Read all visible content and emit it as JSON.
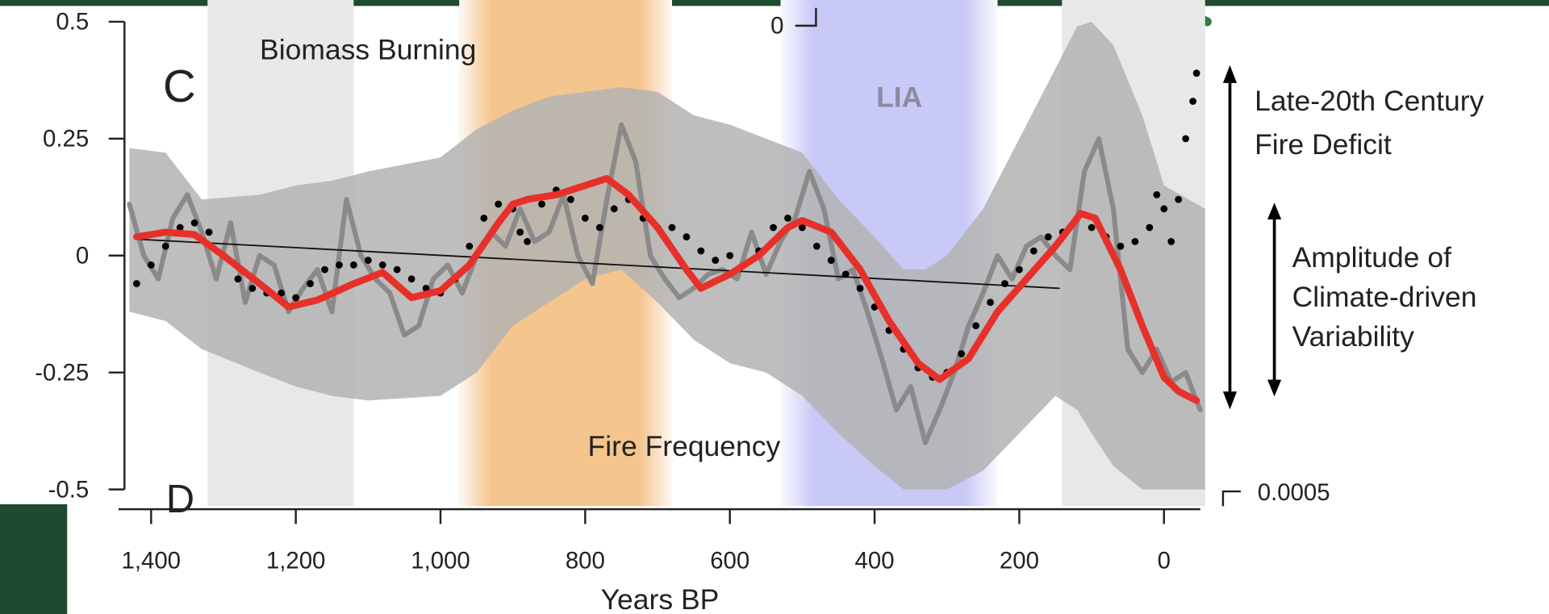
{
  "chart_data": {
    "type": "line",
    "xlabel": "Years BP",
    "panel_label": "C",
    "next_panel_label": "D",
    "xlim": [
      1445,
      -57
    ],
    "ylim": [
      -0.5,
      0.5
    ],
    "xticks": [
      {
        "value": 1400,
        "label": "1,400"
      },
      {
        "value": 1200,
        "label": "1,200"
      },
      {
        "value": 1000,
        "label": "1,000"
      },
      800,
      600,
      400,
      200,
      0
    ],
    "yticks": [
      0.5,
      0.25,
      0,
      -0.25,
      -0.5
    ],
    "annotations": {
      "biomass": "Biomass Burning",
      "lia": "LIA",
      "fire_frequency": "Fire Frequency",
      "deficit": [
        "Late-20th Century",
        "Fire Deficit"
      ],
      "amplitude": [
        "Amplitude of",
        "Climate-driven",
        "Variability"
      ],
      "upper_fragment": "0",
      "lower_fragment": "0.0005"
    },
    "spans": [
      {
        "start": 1322,
        "end": 1120,
        "color": "#e8e8e8"
      },
      {
        "start": 974,
        "end": 680,
        "color": "#f5c58e"
      },
      {
        "start": 530,
        "end": 230,
        "color": "#c9c9f7"
      },
      {
        "start": 141,
        "end": -57,
        "color": "#e8e8e8"
      }
    ],
    "band": {
      "color": "#b3b3b3",
      "x": [
        1430,
        1380,
        1330,
        1250,
        1200,
        1150,
        1100,
        1000,
        950,
        900,
        850,
        800,
        750,
        700,
        650,
        600,
        550,
        500,
        450,
        400,
        360,
        330,
        300,
        250,
        200,
        150,
        120,
        100,
        70,
        30,
        0,
        -57
      ],
      "upper": [
        0.23,
        0.22,
        0.12,
        0.13,
        0.15,
        0.16,
        0.18,
        0.21,
        0.27,
        0.31,
        0.34,
        0.35,
        0.36,
        0.35,
        0.3,
        0.28,
        0.25,
        0.22,
        0.12,
        0.04,
        -0.03,
        -0.03,
        0.0,
        0.1,
        0.25,
        0.4,
        0.49,
        0.5,
        0.45,
        0.3,
        0.15,
        0.1
      ],
      "lower": [
        -0.12,
        -0.14,
        -0.2,
        -0.25,
        -0.28,
        -0.3,
        -0.31,
        -0.3,
        -0.25,
        -0.15,
        -0.1,
        -0.05,
        -0.03,
        -0.1,
        -0.18,
        -0.23,
        -0.25,
        -0.3,
        -0.38,
        -0.45,
        -0.5,
        -0.5,
        -0.5,
        -0.46,
        -0.38,
        -0.3,
        -0.33,
        -0.38,
        -0.45,
        -0.5,
        -0.5,
        -0.5
      ]
    },
    "series": [
      {
        "color": "#8a8a8a",
        "style": "solid",
        "width": 5,
        "x": [
          1430,
          1410,
          1390,
          1370,
          1350,
          1330,
          1310,
          1290,
          1270,
          1250,
          1230,
          1210,
          1190,
          1170,
          1150,
          1130,
          1110,
          1090,
          1070,
          1050,
          1030,
          1010,
          990,
          970,
          950,
          930,
          910,
          890,
          870,
          850,
          830,
          810,
          790,
          770,
          750,
          730,
          710,
          690,
          670,
          650,
          630,
          610,
          590,
          570,
          550,
          530,
          510,
          490,
          470,
          450,
          430,
          410,
          390,
          370,
          350,
          330,
          310,
          290,
          270,
          250,
          230,
          210,
          190,
          170,
          150,
          130,
          110,
          90,
          70,
          50,
          30,
          10,
          -10,
          -30,
          -50
        ],
        "values": [
          0.11,
          0.0,
          -0.05,
          0.08,
          0.13,
          0.05,
          -0.05,
          0.07,
          -0.1,
          0.0,
          -0.02,
          -0.12,
          -0.07,
          -0.03,
          -0.12,
          0.12,
          0.0,
          -0.05,
          -0.08,
          -0.17,
          -0.15,
          -0.05,
          -0.02,
          -0.08,
          0.0,
          0.05,
          0.02,
          0.1,
          0.03,
          0.05,
          0.13,
          0.0,
          -0.06,
          0.12,
          0.28,
          0.2,
          0.0,
          -0.05,
          -0.09,
          -0.07,
          -0.04,
          -0.03,
          -0.05,
          0.05,
          -0.04,
          0.03,
          0.08,
          0.18,
          0.1,
          -0.05,
          -0.03,
          -0.12,
          -0.22,
          -0.33,
          -0.28,
          -0.4,
          -0.33,
          -0.25,
          -0.15,
          -0.08,
          0.0,
          -0.05,
          0.02,
          0.04,
          0.0,
          -0.03,
          0.18,
          0.25,
          0.1,
          -0.2,
          -0.25,
          -0.2,
          -0.27,
          -0.25,
          -0.33
        ]
      },
      {
        "color": "#111111",
        "style": "solid",
        "width": 1.5,
        "x": [
          1420,
          145
        ],
        "values": [
          0.035,
          -0.07
        ]
      },
      {
        "color": "#000000",
        "style": "dots",
        "width": 3.6,
        "x": [
          1420,
          1400,
          1380,
          1360,
          1340,
          1320,
          1300,
          1280,
          1260,
          1240,
          1220,
          1200,
          1180,
          1160,
          1140,
          1120,
          1100,
          1080,
          1060,
          1040,
          1020,
          1000,
          980,
          960,
          940,
          920,
          900,
          890,
          880,
          860,
          840,
          820,
          800,
          780,
          760,
          740,
          720,
          700,
          680,
          660,
          640,
          620,
          600,
          580,
          560,
          540,
          520,
          500,
          480,
          460,
          440,
          420,
          400,
          380,
          360,
          340,
          320,
          300,
          280,
          260,
          240,
          220,
          200,
          180,
          160,
          140,
          120,
          100,
          80,
          60,
          40,
          20,
          10,
          0,
          -10,
          -20,
          -30,
          -40,
          -45
        ],
        "values": [
          -0.06,
          -0.02,
          0.02,
          0.06,
          0.07,
          0.05,
          0.0,
          -0.05,
          -0.07,
          -0.08,
          -0.08,
          -0.09,
          -0.06,
          -0.03,
          -0.02,
          -0.02,
          -0.01,
          -0.02,
          -0.03,
          -0.05,
          -0.07,
          -0.08,
          -0.05,
          0.02,
          0.08,
          0.11,
          0.1,
          0.05,
          0.03,
          0.11,
          0.14,
          0.12,
          0.08,
          0.06,
          0.1,
          0.12,
          0.08,
          0.06,
          0.06,
          0.04,
          0.01,
          -0.01,
          0.0,
          -0.02,
          0.01,
          0.06,
          0.08,
          0.06,
          0.02,
          -0.01,
          -0.04,
          -0.07,
          -0.11,
          -0.16,
          -0.2,
          -0.24,
          -0.26,
          -0.25,
          -0.21,
          -0.15,
          -0.1,
          -0.06,
          -0.03,
          0.01,
          0.04,
          0.05,
          0.08,
          0.06,
          0.04,
          0.02,
          0.03,
          0.06,
          0.13,
          0.1,
          0.03,
          0.12,
          0.25,
          0.33,
          0.39
        ]
      },
      {
        "color": "#e8302a",
        "style": "solid",
        "width": 7,
        "x": [
          1420,
          1380,
          1340,
          1300,
          1250,
          1210,
          1170,
          1120,
          1080,
          1040,
          1000,
          960,
          920,
          900,
          880,
          840,
          800,
          770,
          740,
          700,
          660,
          640,
          600,
          560,
          520,
          500,
          460,
          420,
          380,
          340,
          310,
          270,
          230,
          190,
          150,
          115,
          95,
          60,
          30,
          0,
          -20,
          -45
        ],
        "values": [
          0.04,
          0.05,
          0.045,
          0.0,
          -0.06,
          -0.11,
          -0.095,
          -0.06,
          -0.036,
          -0.09,
          -0.075,
          -0.02,
          0.07,
          0.11,
          0.12,
          0.13,
          0.15,
          0.165,
          0.13,
          0.06,
          -0.03,
          -0.07,
          -0.04,
          0.0,
          0.06,
          0.075,
          0.05,
          -0.03,
          -0.14,
          -0.23,
          -0.265,
          -0.22,
          -0.12,
          -0.05,
          0.02,
          0.09,
          0.08,
          -0.03,
          -0.15,
          -0.26,
          -0.29,
          -0.31
        ]
      }
    ]
  }
}
